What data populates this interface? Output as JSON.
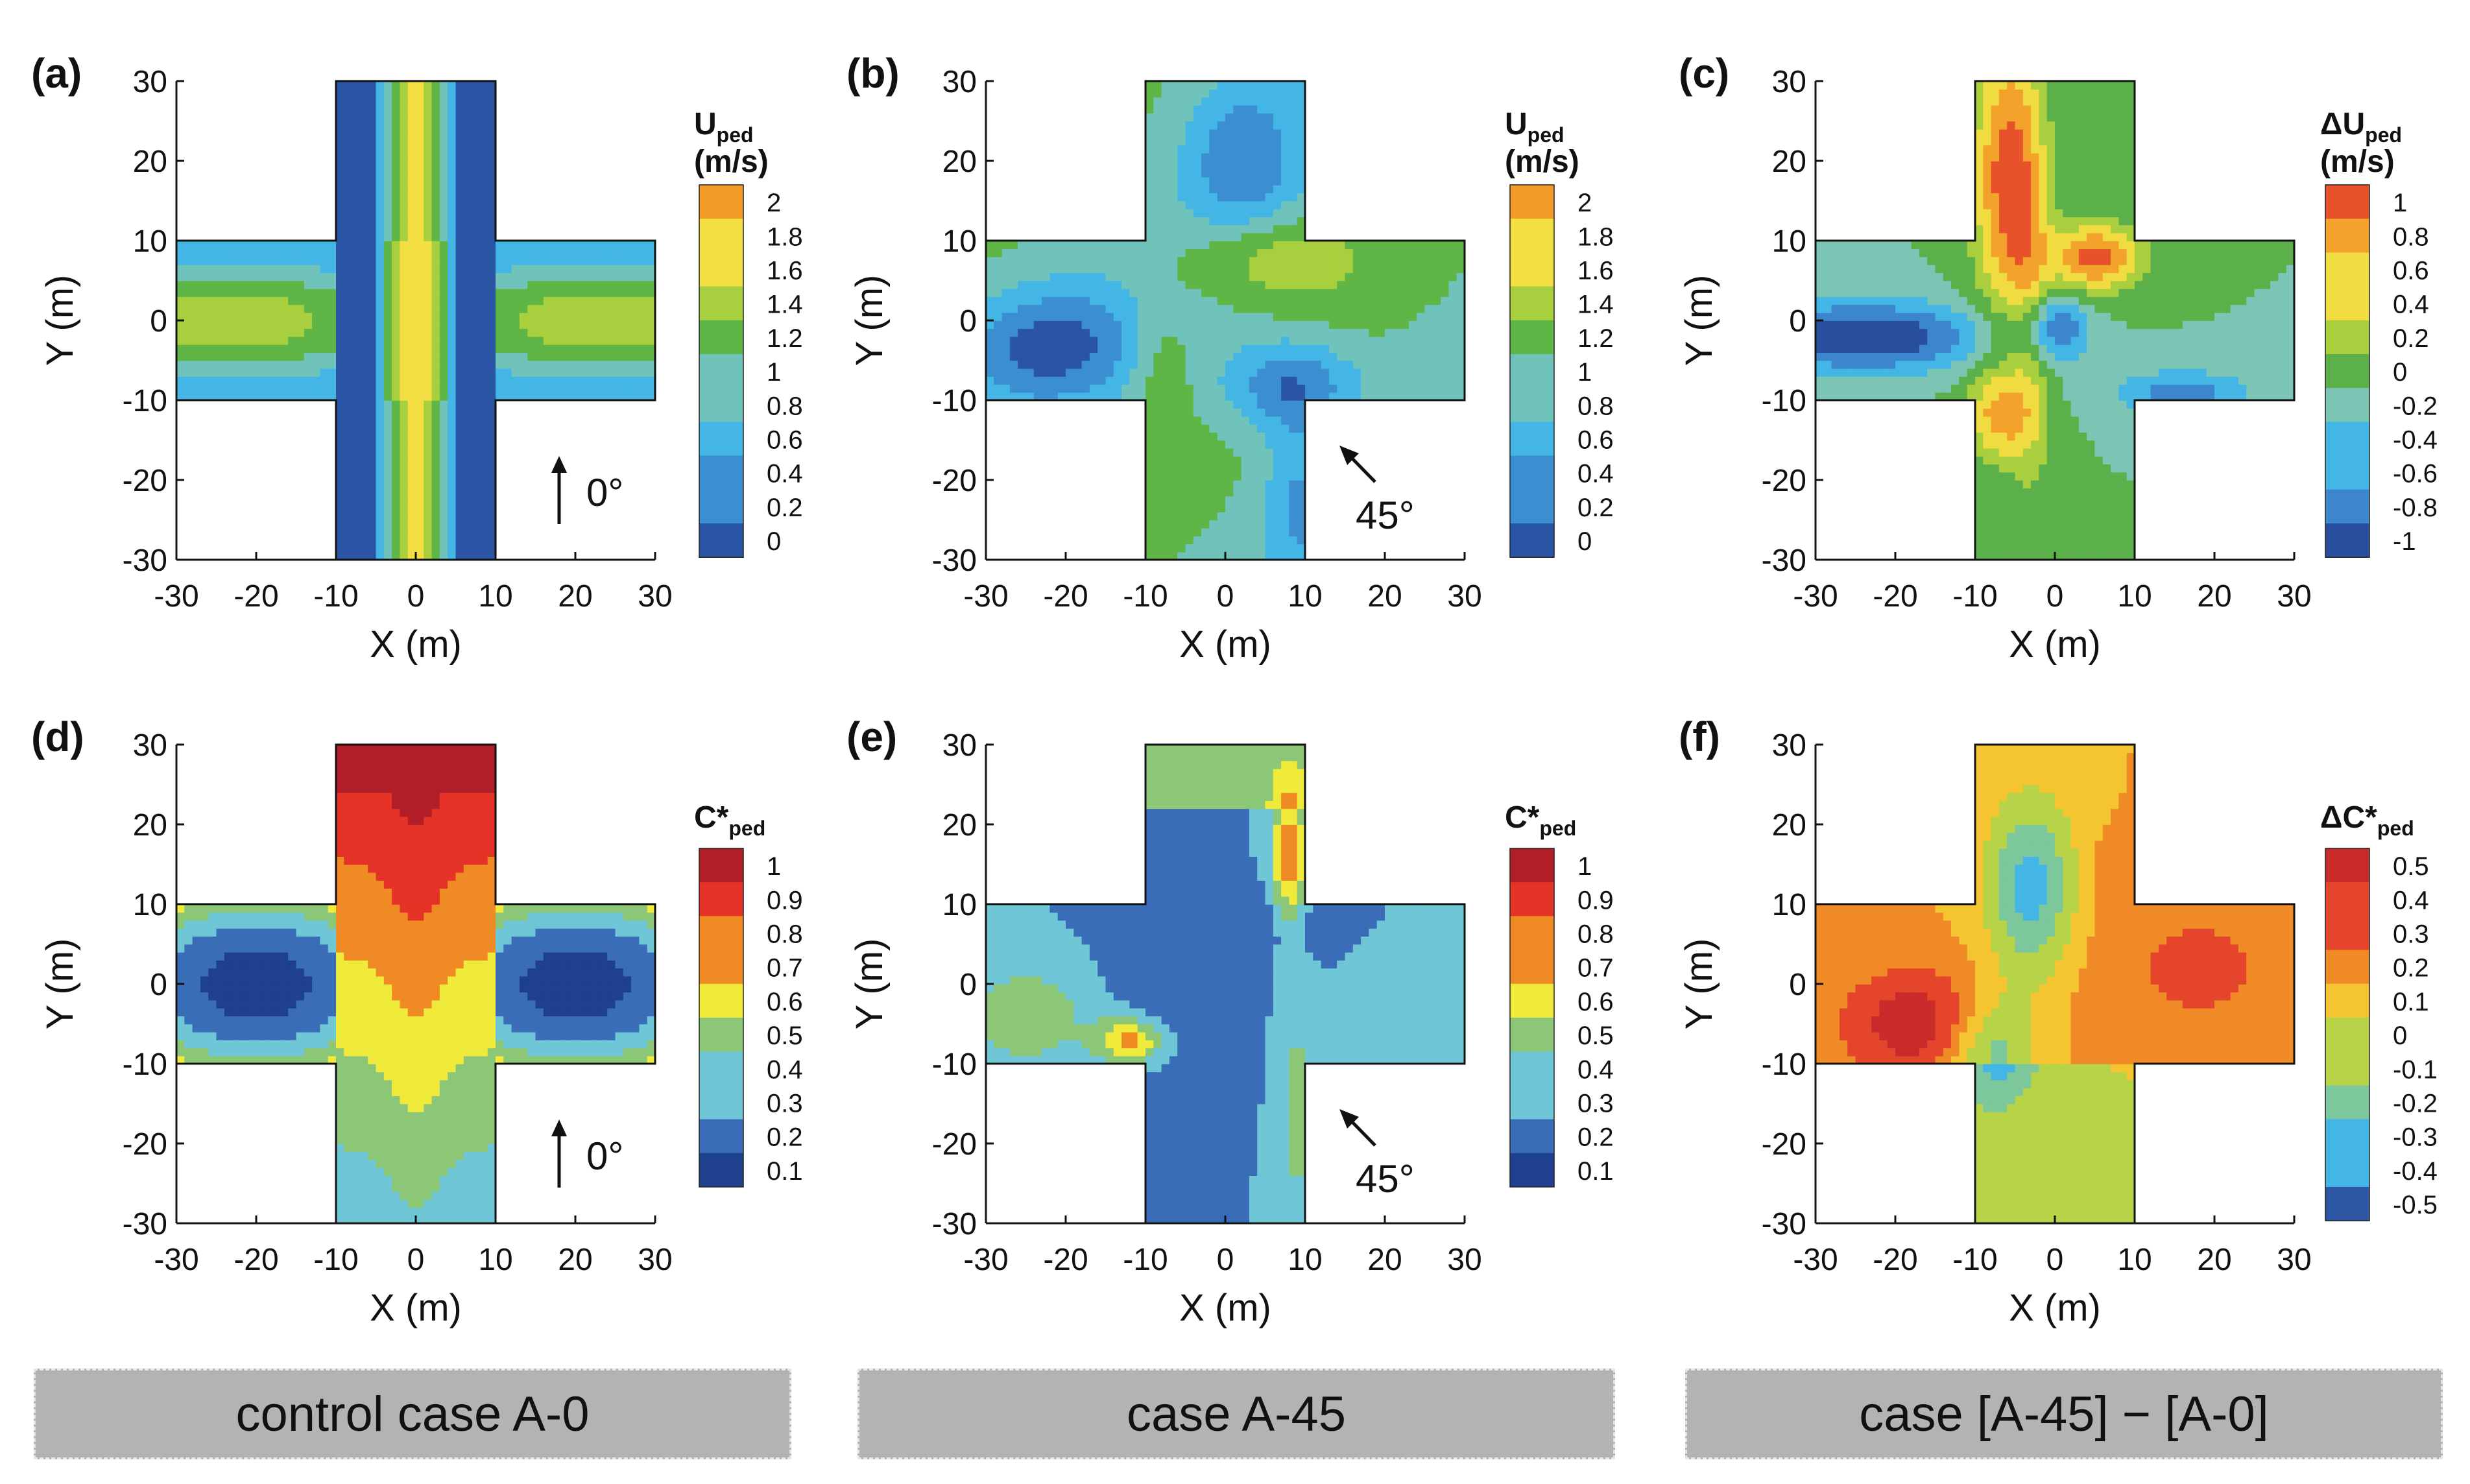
{
  "chart_data": [
    {
      "id": "a",
      "panel_label": "(a)",
      "type": "heatmap",
      "xlabel": "X (m)",
      "ylabel": "Y (m)",
      "xticks": [
        "-30",
        "-20",
        "-10",
        "0",
        "10",
        "20",
        "30"
      ],
      "yticks": [
        "30",
        "20",
        "10",
        "0",
        "-10",
        "-20",
        "-30"
      ],
      "xlim": [
        -30,
        30
      ],
      "ylim": [
        -30,
        30
      ],
      "domain_shape": "cross",
      "colorbar": {
        "title": "U",
        "title_sub": "ped",
        "units": "(m/s)",
        "levels": [
          "2",
          "1.8",
          "1.6",
          "1.4",
          "1.2",
          "1",
          "0.8",
          "0.6",
          "0.4",
          "0.2",
          "0"
        ]
      },
      "wind_label": "0°",
      "wind_direction_deg": 0,
      "field": {
        "kind": "speed_0",
        "levels": [
          0.15,
          0.35,
          0.55,
          0.75,
          0.95,
          1.15,
          1.35
        ],
        "scale": "u"
      }
    },
    {
      "id": "b",
      "panel_label": "(b)",
      "type": "heatmap",
      "xlabel": "X (m)",
      "ylabel": "Y (m)",
      "xticks": [
        "-30",
        "-20",
        "-10",
        "0",
        "10",
        "20",
        "30"
      ],
      "yticks": [
        "30",
        "20",
        "10",
        "0",
        "-10",
        "-20",
        "-30"
      ],
      "xlim": [
        -30,
        30
      ],
      "ylim": [
        -30,
        30
      ],
      "domain_shape": "cross",
      "colorbar": {
        "title": "U",
        "title_sub": "ped",
        "units": "(m/s)",
        "levels": [
          "2",
          "1.8",
          "1.6",
          "1.4",
          "1.2",
          "1",
          "0.8",
          "0.6",
          "0.4",
          "0.2",
          "0"
        ]
      },
      "wind_label": "45°",
      "wind_direction_deg": 45,
      "field": {
        "kind": "speed_45",
        "levels": [
          0.15,
          0.35,
          0.55,
          0.75,
          0.95,
          1.15,
          1.35
        ],
        "scale": "u"
      }
    },
    {
      "id": "c",
      "panel_label": "(c)",
      "type": "heatmap",
      "xlabel": "X (m)",
      "ylabel": "Y (m)",
      "xticks": [
        "-30",
        "-20",
        "-10",
        "0",
        "10",
        "20",
        "30"
      ],
      "yticks": [
        "30",
        "20",
        "10",
        "0",
        "-10",
        "-20",
        "-30"
      ],
      "xlim": [
        -30,
        30
      ],
      "ylim": [
        -30,
        30
      ],
      "domain_shape": "cross",
      "colorbar": {
        "title": "ΔU",
        "title_sub": "ped",
        "units": "(m/s)",
        "levels": [
          "1",
          "0.8",
          "0.6",
          "0.4",
          "0.2",
          "0",
          "-0.2",
          "-0.4",
          "-0.6",
          "-0.8",
          "-1"
        ]
      },
      "field": {
        "kind": "speed_diff",
        "levels": [
          -0.7,
          -0.5,
          -0.3,
          -0.1,
          0.1,
          0.3,
          0.5,
          0.7
        ],
        "scale": "du"
      }
    },
    {
      "id": "d",
      "panel_label": "(d)",
      "type": "heatmap",
      "xlabel": "X (m)",
      "ylabel": "Y (m)",
      "xticks": [
        "-30",
        "-20",
        "-10",
        "0",
        "10",
        "20",
        "30"
      ],
      "yticks": [
        "30",
        "20",
        "10",
        "0",
        "-10",
        "-20",
        "-30"
      ],
      "xlim": [
        -30,
        30
      ],
      "ylim": [
        -30,
        30
      ],
      "domain_shape": "cross",
      "colorbar": {
        "title": "C*",
        "title_sub": "ped",
        "units": "",
        "levels": [
          "1",
          "0.9",
          "0.8",
          "0.7",
          "0.6",
          "0.5",
          "0.4",
          "0.3",
          "0.2",
          "0.1"
        ]
      },
      "wind_label": "0°",
      "wind_direction_deg": 0,
      "field": {
        "kind": "conc_0",
        "levels": [
          0.25,
          0.35,
          0.45,
          0.55,
          0.65,
          0.75,
          0.85
        ],
        "scale": "c"
      }
    },
    {
      "id": "e",
      "panel_label": "(e)",
      "type": "heatmap",
      "xlabel": "X (m)",
      "ylabel": "Y (m)",
      "xticks": [
        "-30",
        "-20",
        "-10",
        "0",
        "10",
        "20",
        "30"
      ],
      "yticks": [
        "30",
        "20",
        "10",
        "0",
        "-10",
        "-20",
        "-30"
      ],
      "xlim": [
        -30,
        30
      ],
      "ylim": [
        -30,
        30
      ],
      "domain_shape": "cross",
      "colorbar": {
        "title": "C*",
        "title_sub": "ped",
        "units": "",
        "levels": [
          "1",
          "0.9",
          "0.8",
          "0.7",
          "0.6",
          "0.5",
          "0.4",
          "0.3",
          "0.2",
          "0.1"
        ]
      },
      "wind_label": "45°",
      "wind_direction_deg": 45,
      "field": {
        "kind": "conc_45",
        "levels": [
          0.25,
          0.35,
          0.45,
          0.55,
          0.65,
          0.75
        ],
        "scale": "c"
      }
    },
    {
      "id": "f",
      "panel_label": "(f)",
      "type": "heatmap",
      "xlabel": "X (m)",
      "ylabel": "Y (m)",
      "xticks": [
        "-30",
        "-20",
        "-10",
        "0",
        "10",
        "20",
        "30"
      ],
      "yticks": [
        "30",
        "20",
        "10",
        "0",
        "-10",
        "-20",
        "-30"
      ],
      "xlim": [
        -30,
        30
      ],
      "ylim": [
        -30,
        30
      ],
      "domain_shape": "cross",
      "colorbar": {
        "title": "ΔC*",
        "title_sub": "ped",
        "units": "",
        "levels": [
          "0.5",
          "0.4",
          "0.3",
          "0.2",
          "0.1",
          "0",
          "-0.1",
          "-0.2",
          "-0.3",
          "-0.4",
          "-0.5"
        ]
      },
      "field": {
        "kind": "conc_diff",
        "levels": [
          -0.35,
          -0.25,
          -0.15,
          -0.05,
          0.05,
          0.15,
          0.25
        ],
        "scale": "dc"
      }
    }
  ],
  "footers": [
    "control case A-0",
    "case A-45",
    "case [A-45] − [A-0]"
  ],
  "colors": {
    "u": [
      "#2a55a5",
      "#3b8fd1",
      "#43b6e5",
      "#70c3bb",
      "#5fb546",
      "#a8cf3d",
      "#f3df42",
      "#f39c2a"
    ],
    "du": [
      "#284f9e",
      "#3b86cc",
      "#43b6e5",
      "#7cc5b4",
      "#5bb04a",
      "#a9cf3e",
      "#f0dc40",
      "#f3a22c",
      "#e8522a"
    ],
    "c": [
      "#1f3f8f",
      "#3a6db8",
      "#6fc6d6",
      "#8cc777",
      "#f0eb3a",
      "#f08a24",
      "#e63327",
      "#b21e28"
    ],
    "dc": [
      "#2d56a5",
      "#43b6e5",
      "#7cc79b",
      "#b7d348",
      "#f5c431",
      "#f08a26",
      "#e5452b",
      "#c92a2a"
    ]
  }
}
